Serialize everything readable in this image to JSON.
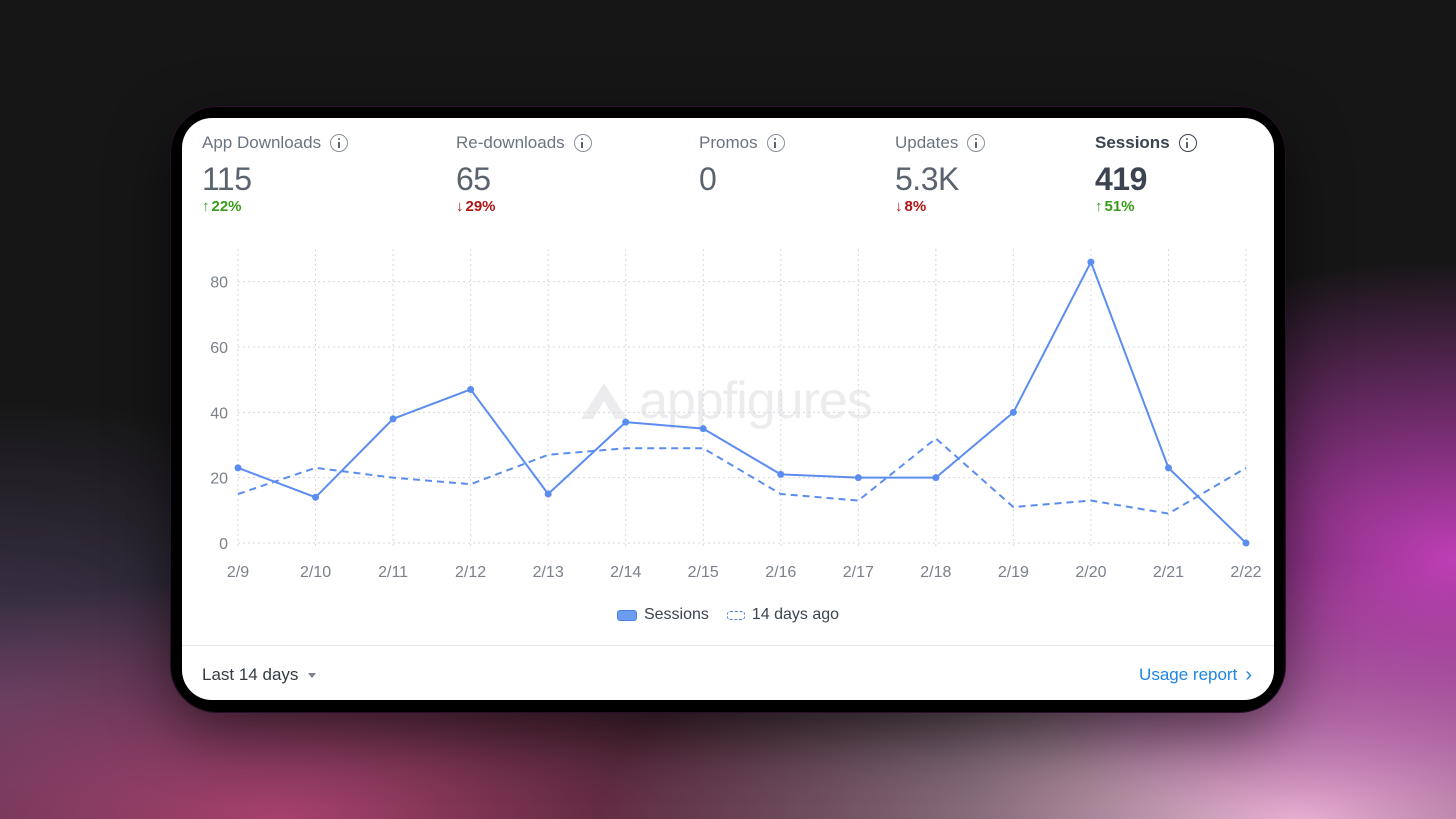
{
  "metrics": [
    {
      "label": "App Downloads",
      "value": "115",
      "change": "22%",
      "direction": "up"
    },
    {
      "label": "Re-downloads",
      "value": "65",
      "change": "29%",
      "direction": "down"
    },
    {
      "label": "Promos",
      "value": "0",
      "change": "",
      "direction": ""
    },
    {
      "label": "Updates",
      "value": "5.3K",
      "change": "8%",
      "direction": "down"
    },
    {
      "label": "Sessions",
      "value": "419",
      "change": "51%",
      "direction": "up",
      "active": true
    }
  ],
  "watermark": "appfigures",
  "footer": {
    "range_label": "Last 14 days",
    "report_link": "Usage report"
  },
  "colors": {
    "series": "#6b9cf0",
    "line": "#5b8df0",
    "up": "#3a9a1a",
    "down": "#b01616",
    "link": "#1f86e0"
  },
  "chart_data": {
    "type": "line",
    "categories": [
      "2/9",
      "2/10",
      "2/11",
      "2/12",
      "2/13",
      "2/14",
      "2/15",
      "2/16",
      "2/17",
      "2/18",
      "2/19",
      "2/20",
      "2/21",
      "2/22"
    ],
    "series": [
      {
        "name": "Sessions",
        "style": "solid",
        "values": [
          23,
          14,
          38,
          47,
          15,
          37,
          35,
          21,
          20,
          20,
          40,
          86,
          23,
          0
        ]
      },
      {
        "name": "14 days ago",
        "style": "dashed",
        "values": [
          15,
          23,
          20,
          18,
          27,
          29,
          29,
          15,
          13,
          32,
          11,
          13,
          9,
          23
        ]
      }
    ],
    "yticks": [
      0,
      20,
      40,
      60,
      80
    ],
    "ylim": [
      0,
      90
    ],
    "grid": true,
    "legend": "bottom-center"
  }
}
